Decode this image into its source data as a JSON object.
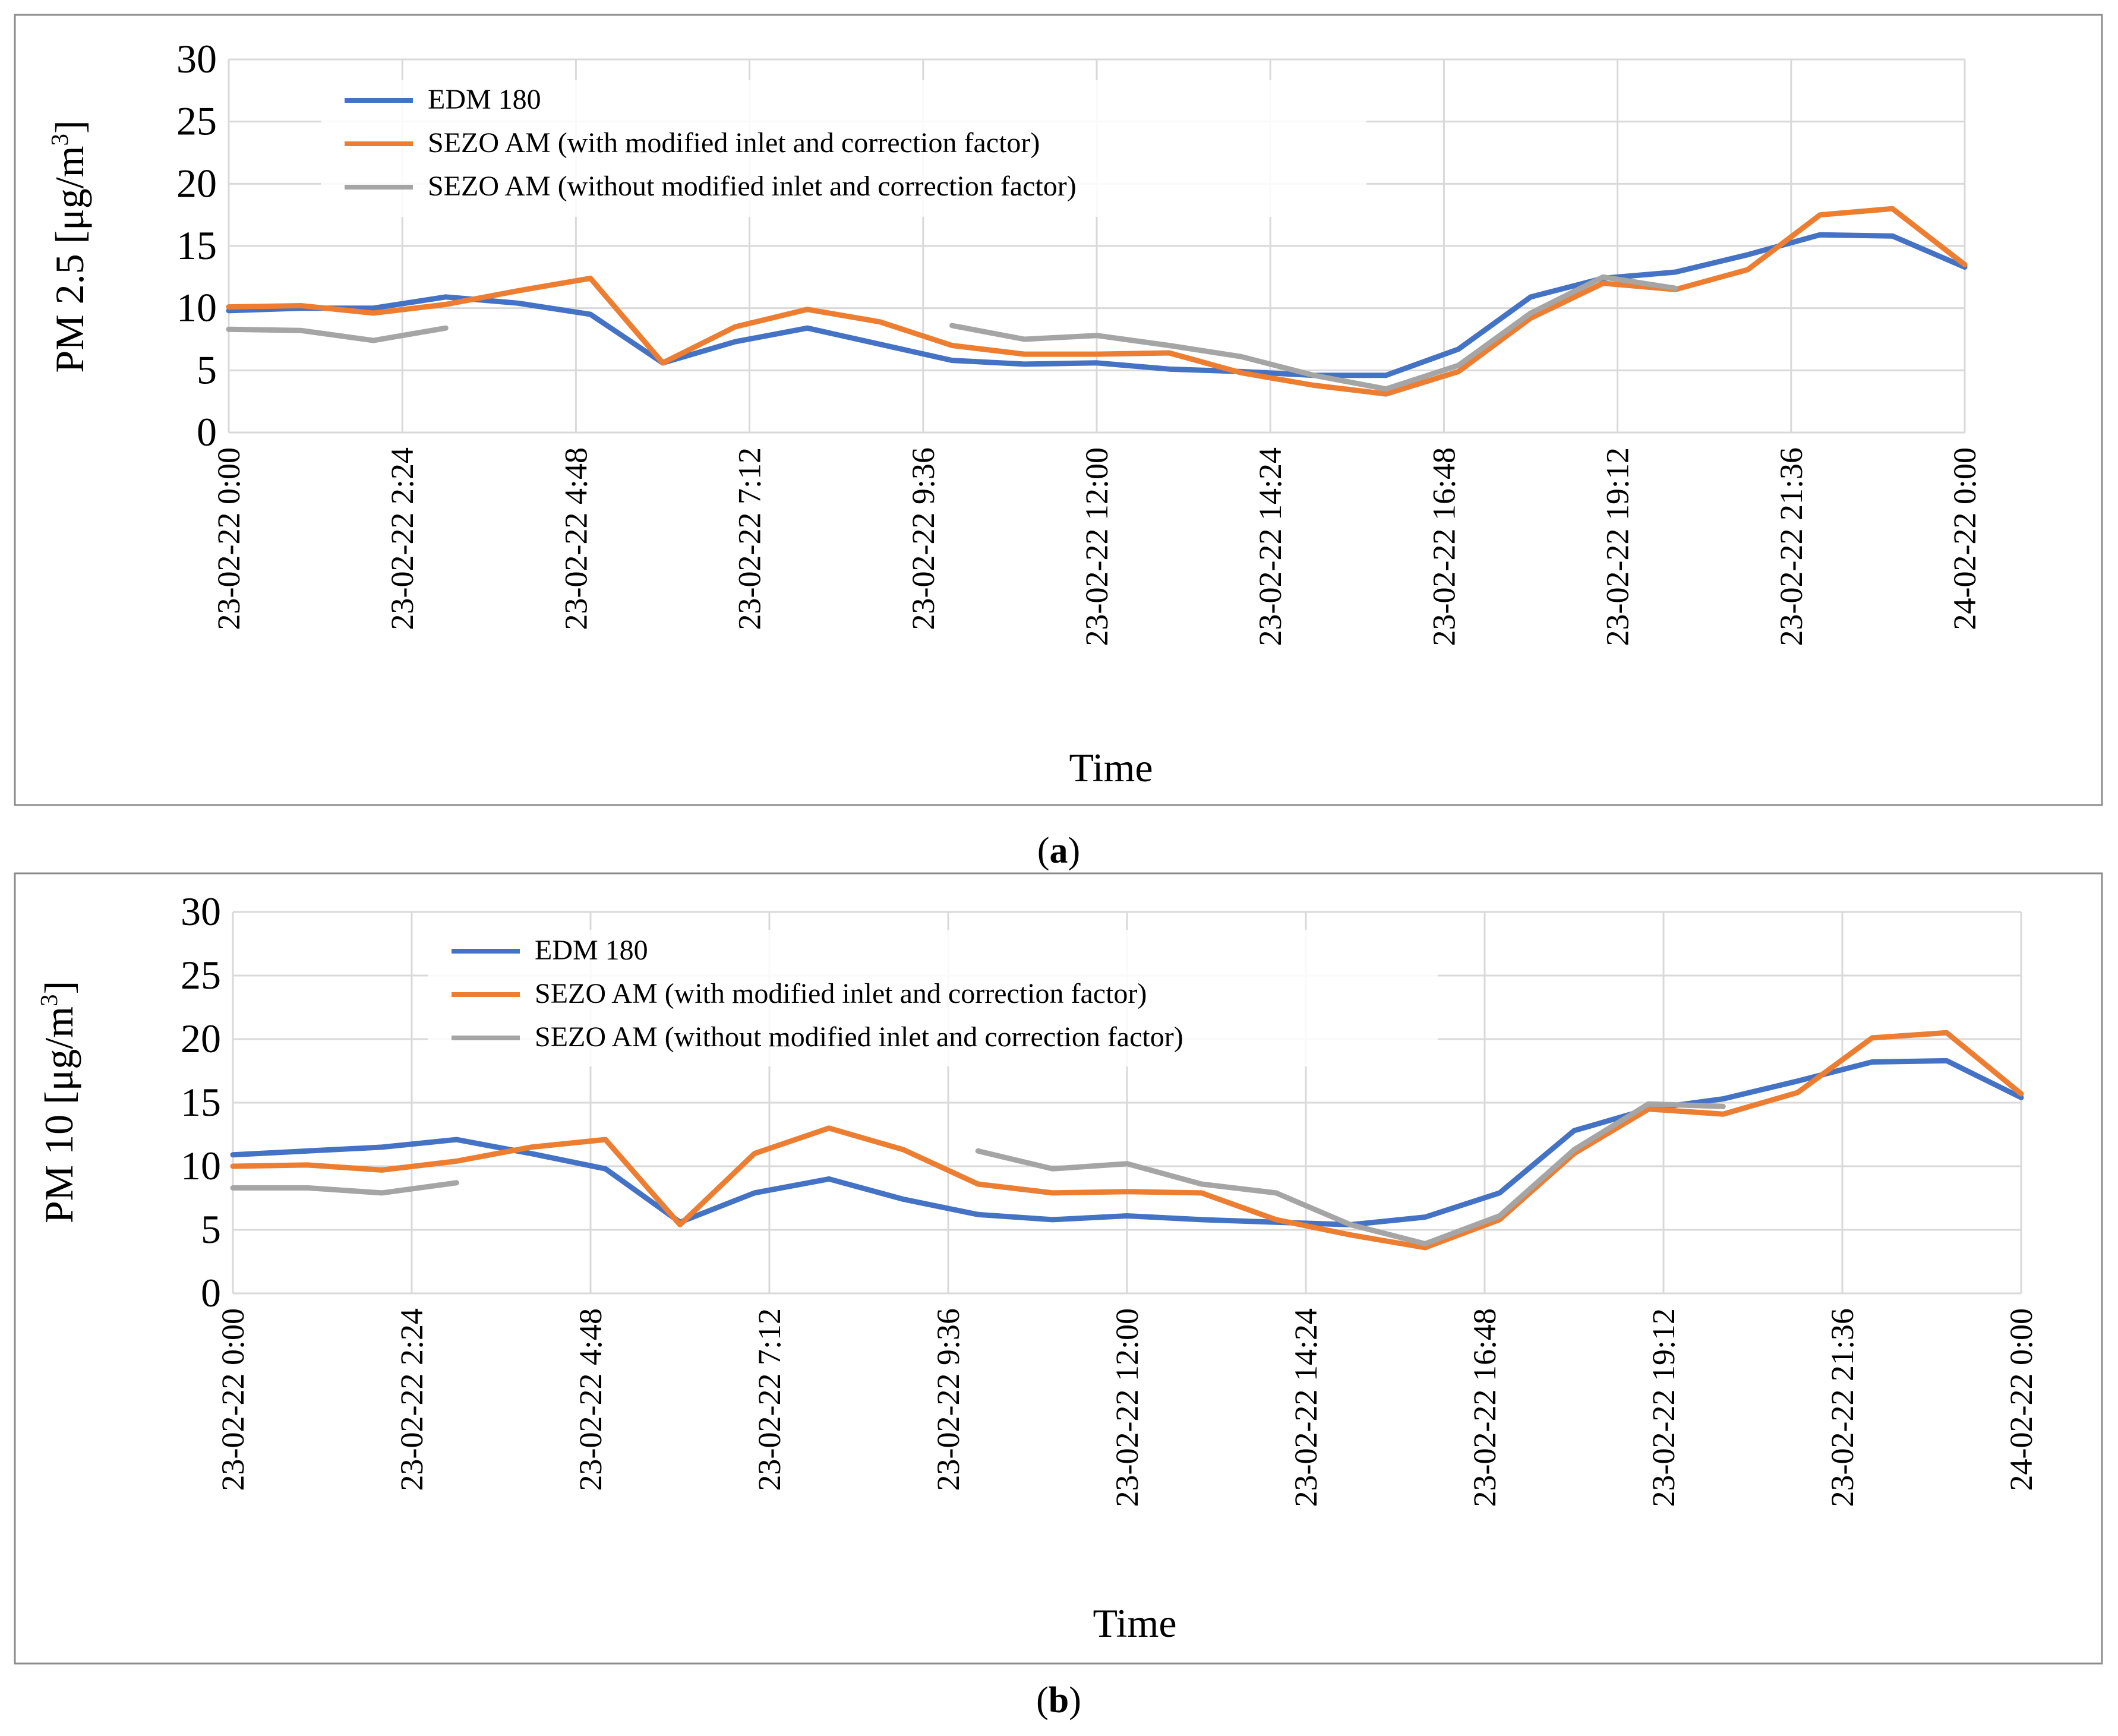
{
  "panels": [
    {
      "caption_open": "(",
      "caption_letter": "a",
      "caption_close": ")"
    },
    {
      "caption_open": "(",
      "caption_letter": "b",
      "caption_close": ")"
    }
  ],
  "chart_data": [
    {
      "type": "line",
      "title": "",
      "xlabel": "Time",
      "ylabel": "PM 2.5  [μg/m³]",
      "ylabel_parts": {
        "main": "PM 2.5  [μg/m",
        "sup": "3",
        "end": "]"
      },
      "ylim": [
        0,
        30
      ],
      "yticks": [
        0,
        5,
        10,
        15,
        20,
        25,
        30
      ],
      "xlim_hours": [
        0,
        24
      ],
      "xticks": [
        {
          "hour": 0,
          "label": "23-02-22 0:00"
        },
        {
          "hour": 2.4,
          "label": "23-02-22 2:24"
        },
        {
          "hour": 4.8,
          "label": "23-02-22 4:48"
        },
        {
          "hour": 7.2,
          "label": "23-02-22 7:12"
        },
        {
          "hour": 9.6,
          "label": "23-02-22 9:36"
        },
        {
          "hour": 12,
          "label": "23-02-22 12:00"
        },
        {
          "hour": 14.4,
          "label": "23-02-22 14:24"
        },
        {
          "hour": 16.8,
          "label": "23-02-22 16:48"
        },
        {
          "hour": 19.2,
          "label": "23-02-22 19:12"
        },
        {
          "hour": 21.6,
          "label": "23-02-22 21:36"
        },
        {
          "hour": 24,
          "label": "24-02-22 0:00"
        }
      ],
      "grid": true,
      "legend_position": "top-left",
      "series": [
        {
          "name": "EDM 180",
          "color": "#4472C4",
          "points": [
            [
              0,
              9.8
            ],
            [
              1,
              10.0
            ],
            [
              2,
              10.0
            ],
            [
              3,
              10.9
            ],
            [
              4,
              10.4
            ],
            [
              5,
              9.5
            ],
            [
              6,
              5.6
            ],
            [
              7,
              7.3
            ],
            [
              8,
              8.4
            ],
            [
              9,
              7.1
            ],
            [
              10,
              5.8
            ],
            [
              11,
              5.5
            ],
            [
              12,
              5.6
            ],
            [
              13,
              5.1
            ],
            [
              14,
              4.9
            ],
            [
              15,
              4.6
            ],
            [
              16,
              4.6
            ],
            [
              17,
              6.7
            ],
            [
              18,
              10.9
            ],
            [
              19,
              12.4
            ],
            [
              20,
              12.9
            ],
            [
              21,
              14.3
            ],
            [
              22,
              15.9
            ],
            [
              23,
              15.8
            ],
            [
              24,
              13.3
            ]
          ]
        },
        {
          "name": "SEZO AM (with modified inlet and correction factor)",
          "color": "#ED7D31",
          "points": [
            [
              0,
              10.1
            ],
            [
              1,
              10.2
            ],
            [
              2,
              9.6
            ],
            [
              3,
              10.3
            ],
            [
              4,
              11.4
            ],
            [
              5,
              12.4
            ],
            [
              6,
              5.6
            ],
            [
              7,
              8.5
            ],
            [
              8,
              9.9
            ],
            [
              9,
              8.9
            ],
            [
              10,
              7.0
            ],
            [
              11,
              6.3
            ],
            [
              12,
              6.3
            ],
            [
              13,
              6.4
            ],
            [
              14,
              4.8
            ],
            [
              15,
              3.8
            ],
            [
              16,
              3.1
            ],
            [
              17,
              4.9
            ],
            [
              18,
              9.2
            ],
            [
              19,
              12.0
            ],
            [
              20,
              11.5
            ],
            [
              21,
              13.1
            ],
            [
              22,
              17.5
            ],
            [
              23,
              18.0
            ],
            [
              24,
              13.5
            ]
          ]
        },
        {
          "name": "SEZO AM (without modified inlet and correction factor)",
          "color": "#A5A5A5",
          "segments": [
            [
              [
                0,
                8.3
              ],
              [
                1,
                8.2
              ],
              [
                2,
                7.4
              ],
              [
                3,
                8.4
              ]
            ],
            [
              [
                10,
                8.6
              ],
              [
                11,
                7.5
              ],
              [
                12,
                7.8
              ],
              [
                13,
                7.0
              ],
              [
                14,
                6.1
              ],
              [
                15,
                4.6
              ],
              [
                16,
                3.5
              ],
              [
                17,
                5.4
              ],
              [
                18,
                9.6
              ],
              [
                19,
                12.5
              ],
              [
                20,
                11.6
              ]
            ]
          ]
        }
      ]
    },
    {
      "type": "line",
      "title": "",
      "xlabel": "Time",
      "ylabel": "PM 10  [μg/m³]",
      "ylabel_parts": {
        "main": "PM 10  [μg/m",
        "sup": "3",
        "end": "]"
      },
      "ylim": [
        0,
        30
      ],
      "yticks": [
        0,
        5,
        10,
        15,
        20,
        25,
        30
      ],
      "xlim_hours": [
        0,
        24
      ],
      "xticks": [
        {
          "hour": 0,
          "label": "23-02-22 0:00"
        },
        {
          "hour": 2.4,
          "label": "23-02-22 2:24"
        },
        {
          "hour": 4.8,
          "label": "23-02-22 4:48"
        },
        {
          "hour": 7.2,
          "label": "23-02-22 7:12"
        },
        {
          "hour": 9.6,
          "label": "23-02-22 9:36"
        },
        {
          "hour": 12,
          "label": "23-02-22 12:00"
        },
        {
          "hour": 14.4,
          "label": "23-02-22 14:24"
        },
        {
          "hour": 16.8,
          "label": "23-02-22 16:48"
        },
        {
          "hour": 19.2,
          "label": "23-02-22 19:12"
        },
        {
          "hour": 21.6,
          "label": "23-02-22 21:36"
        },
        {
          "hour": 24,
          "label": "24-02-22 0:00"
        }
      ],
      "grid": true,
      "legend_position": "top-center",
      "series": [
        {
          "name": "EDM 180",
          "color": "#4472C4",
          "points": [
            [
              0,
              10.9
            ],
            [
              1,
              11.2
            ],
            [
              2,
              11.5
            ],
            [
              3,
              12.1
            ],
            [
              4,
              11.0
            ],
            [
              5,
              9.8
            ],
            [
              6,
              5.6
            ],
            [
              7,
              7.9
            ],
            [
              8,
              9.0
            ],
            [
              9,
              7.4
            ],
            [
              10,
              6.2
            ],
            [
              11,
              5.8
            ],
            [
              12,
              6.1
            ],
            [
              13,
              5.8
            ],
            [
              14,
              5.6
            ],
            [
              15,
              5.4
            ],
            [
              16,
              6.0
            ],
            [
              17,
              7.9
            ],
            [
              18,
              12.8
            ],
            [
              19,
              14.5
            ],
            [
              20,
              15.3
            ],
            [
              21,
              16.7
            ],
            [
              22,
              18.2
            ],
            [
              23,
              18.3
            ],
            [
              24,
              15.4
            ]
          ]
        },
        {
          "name": "SEZO AM (with modified inlet and correction factor)",
          "color": "#ED7D31",
          "points": [
            [
              0,
              10.0
            ],
            [
              1,
              10.1
            ],
            [
              2,
              9.7
            ],
            [
              3,
              10.4
            ],
            [
              4,
              11.5
            ],
            [
              5,
              12.1
            ],
            [
              6,
              5.4
            ],
            [
              7,
              11.0
            ],
            [
              8,
              13.0
            ],
            [
              9,
              11.3
            ],
            [
              10,
              8.6
            ],
            [
              11,
              7.9
            ],
            [
              12,
              8.0
            ],
            [
              13,
              7.9
            ],
            [
              14,
              5.8
            ],
            [
              15,
              4.6
            ],
            [
              16,
              3.6
            ],
            [
              17,
              5.8
            ],
            [
              18,
              11.0
            ],
            [
              19,
              14.5
            ],
            [
              20,
              14.1
            ],
            [
              21,
              15.8
            ],
            [
              22,
              20.1
            ],
            [
              23,
              20.5
            ],
            [
              24,
              15.7
            ]
          ]
        },
        {
          "name": "SEZO AM (without modified inlet and correction factor)",
          "color": "#A5A5A5",
          "segments": [
            [
              [
                0,
                8.3
              ],
              [
                1,
                8.3
              ],
              [
                2,
                7.9
              ],
              [
                3,
                8.7
              ]
            ],
            [
              [
                10,
                11.2
              ],
              [
                11,
                9.8
              ],
              [
                12,
                10.2
              ],
              [
                13,
                8.6
              ],
              [
                14,
                7.9
              ],
              [
                15,
                5.4
              ],
              [
                16,
                3.9
              ],
              [
                17,
                6.1
              ],
              [
                18,
                11.3
              ],
              [
                19,
                14.9
              ],
              [
                20,
                14.7
              ]
            ]
          ]
        }
      ]
    }
  ]
}
